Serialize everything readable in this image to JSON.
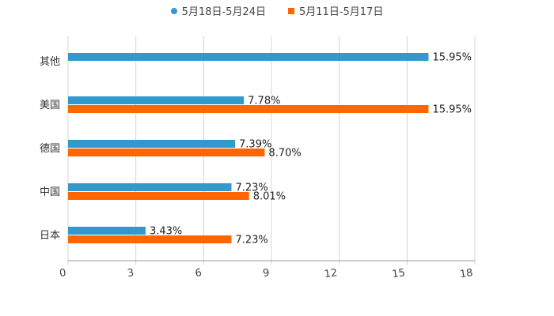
{
  "chart_data": {
    "type": "bar",
    "orientation": "horizontal",
    "categories": [
      "其他",
      "美国",
      "德国",
      "中国",
      "日本"
    ],
    "series": [
      {
        "name": "5月18日-5月24日",
        "color": "#3399cc",
        "marker": "circle",
        "values": [
          15.95,
          7.78,
          7.39,
          7.23,
          3.43
        ],
        "labels": [
          "15.95%",
          "7.78%",
          "7.39%",
          "7.23%",
          "3.43%"
        ]
      },
      {
        "name": "5月11日-5月17日",
        "color": "#ff6600",
        "marker": "square",
        "values": [
          null,
          15.95,
          8.7,
          8.01,
          7.23
        ],
        "labels": [
          "",
          "15.95%",
          "8.70%",
          "8.01%",
          "7.23%"
        ]
      }
    ],
    "xticks": [
      0,
      3,
      6,
      9,
      12,
      15,
      18
    ],
    "xlim": [
      0,
      18
    ],
    "grid": true,
    "legend_position": "top-center",
    "title": "",
    "xlabel": "",
    "ylabel": ""
  }
}
